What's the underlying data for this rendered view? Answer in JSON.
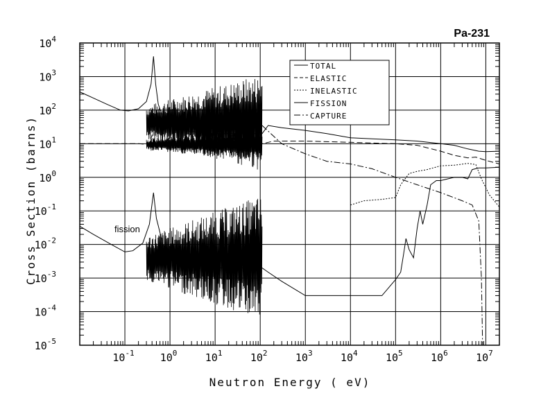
{
  "chart_data": {
    "type": "line",
    "title": "Pa-231",
    "xlabel": "Neutron Energy ( eV)",
    "ylabel": "Cross Section (barns)",
    "x_scale": "log",
    "y_scale": "log",
    "xlim": [
      0.01,
      20000000
    ],
    "ylim": [
      1e-05,
      10000
    ],
    "grid": true,
    "legend_position": "top-right",
    "x_ticks": [
      {
        "value": 0.1,
        "base": "10",
        "exp": "-1"
      },
      {
        "value": 1,
        "base": "10",
        "exp": "0"
      },
      {
        "value": 10,
        "base": "10",
        "exp": "1"
      },
      {
        "value": 100,
        "base": "10",
        "exp": "2"
      },
      {
        "value": 1000,
        "base": "10",
        "exp": "3"
      },
      {
        "value": 10000,
        "base": "10",
        "exp": "4"
      },
      {
        "value": 100000,
        "base": "10",
        "exp": "5"
      },
      {
        "value": 1000000,
        "base": "10",
        "exp": "6"
      },
      {
        "value": 10000000,
        "base": "10",
        "exp": "7"
      }
    ],
    "y_ticks": [
      {
        "value": 10000,
        "base": "10",
        "exp": "4"
      },
      {
        "value": 1000,
        "base": "10",
        "exp": "3"
      },
      {
        "value": 100,
        "base": "10",
        "exp": "2"
      },
      {
        "value": 10,
        "base": "10",
        "exp": "1"
      },
      {
        "value": 1,
        "base": "10",
        "exp": "0"
      },
      {
        "value": 0.1,
        "base": "10",
        "exp": "-1"
      },
      {
        "value": 0.01,
        "base": "10",
        "exp": "-2"
      },
      {
        "value": 0.001,
        "base": "10",
        "exp": "-3"
      },
      {
        "value": 0.0001,
        "base": "10",
        "exp": "-4"
      },
      {
        "value": 1e-05,
        "base": "10",
        "exp": "-5"
      }
    ],
    "annotations": [
      {
        "text": "fission",
        "x": 0.03,
        "y": 0.025
      }
    ],
    "resonance_region": {
      "x_range": [
        0.3,
        110
      ],
      "note": "dense resonance structure drawn as oscillating traces",
      "series": [
        {
          "name": "TOTAL",
          "upper_envelope": 1200,
          "lower_envelope": 1.5
        },
        {
          "name": "ELASTIC",
          "upper_envelope": 30,
          "lower_envelope": 3
        },
        {
          "name": "FISSION",
          "upper_envelope": 0.3,
          "lower_envelope": 5e-05
        }
      ]
    },
    "series": [
      {
        "name": "TOTAL",
        "dash": "solid",
        "points": [
          [
            0.01,
            350
          ],
          [
            0.02,
            230
          ],
          [
            0.04,
            150
          ],
          [
            0.08,
            100
          ],
          [
            0.12,
            95
          ],
          [
            0.2,
            110
          ],
          [
            0.3,
            180
          ],
          [
            0.38,
            600
          ],
          [
            0.43,
            4000
          ],
          [
            0.48,
            600
          ],
          [
            0.55,
            150
          ],
          [
            0.7,
            60
          ],
          [
            0.9,
            40
          ],
          [
            1.2,
            30
          ],
          [
            2,
            25
          ],
          [
            4,
            22
          ],
          [
            10,
            20
          ],
          [
            30,
            20
          ],
          [
            110,
            20
          ],
          [
            150,
            35
          ],
          [
            300,
            30
          ],
          [
            1000,
            25
          ],
          [
            3000,
            20
          ],
          [
            10000,
            15
          ],
          [
            30000,
            14
          ],
          [
            100000,
            13
          ],
          [
            300000,
            12
          ],
          [
            1000000,
            10
          ],
          [
            2000000,
            9
          ],
          [
            4000000,
            7
          ],
          [
            7000000,
            6
          ],
          [
            10000000,
            5.8
          ],
          [
            20000000,
            6
          ]
        ]
      },
      {
        "name": "ELASTIC",
        "dash": "dashed",
        "points": [
          [
            0.01,
            10
          ],
          [
            0.05,
            10
          ],
          [
            0.2,
            10
          ],
          [
            0.35,
            9.5
          ],
          [
            0.4,
            18
          ],
          [
            0.45,
            10
          ],
          [
            0.6,
            9
          ],
          [
            1,
            9
          ],
          [
            3,
            10
          ],
          [
            10,
            10
          ],
          [
            110,
            10
          ],
          [
            200,
            12
          ],
          [
            1000,
            12
          ],
          [
            10000,
            11
          ],
          [
            100000,
            10
          ],
          [
            300000,
            9
          ],
          [
            1000000,
            6
          ],
          [
            2000000,
            4.5
          ],
          [
            4000000,
            3.8
          ],
          [
            6000000,
            4
          ],
          [
            10000000,
            3.2
          ],
          [
            20000000,
            2.5
          ]
        ]
      },
      {
        "name": "INELASTIC",
        "dash": "dotted",
        "points": [
          [
            10000,
            0.15
          ],
          [
            20000,
            0.2
          ],
          [
            50000,
            0.22
          ],
          [
            100000,
            0.25
          ],
          [
            130000,
            0.6
          ],
          [
            200000,
            1.3
          ],
          [
            300000,
            1.5
          ],
          [
            500000,
            1.7
          ],
          [
            1000000,
            2.2
          ],
          [
            2000000,
            2.3
          ],
          [
            4000000,
            2.6
          ],
          [
            6000000,
            2.4
          ],
          [
            8000000,
            0.9
          ],
          [
            12000000,
            0.3
          ],
          [
            20000000,
            0.13
          ]
        ]
      },
      {
        "name": "FISSION",
        "dash": "solid",
        "points": [
          [
            0.01,
            0.035
          ],
          [
            0.02,
            0.02
          ],
          [
            0.05,
            0.01
          ],
          [
            0.1,
            0.006
          ],
          [
            0.15,
            0.0065
          ],
          [
            0.25,
            0.011
          ],
          [
            0.35,
            0.04
          ],
          [
            0.43,
            0.35
          ],
          [
            0.5,
            0.06
          ],
          [
            0.7,
            0.01
          ],
          [
            1,
            0.005
          ],
          [
            3,
            0.003
          ],
          [
            10,
            0.002
          ],
          [
            110,
            0.002
          ],
          [
            150,
            0.0015
          ],
          [
            300,
            0.0008
          ],
          [
            1000,
            0.0003
          ],
          [
            10000,
            0.0003
          ],
          [
            50000,
            0.0003
          ],
          [
            100000,
            0.0009
          ],
          [
            130000,
            0.0015
          ],
          [
            150000,
            0.005
          ],
          [
            170000,
            0.015
          ],
          [
            200000,
            0.007
          ],
          [
            250000,
            0.004
          ],
          [
            300000,
            0.03
          ],
          [
            350000,
            0.1
          ],
          [
            400000,
            0.04
          ],
          [
            500000,
            0.15
          ],
          [
            600000,
            0.6
          ],
          [
            800000,
            0.8
          ],
          [
            1000000,
            0.8
          ],
          [
            2000000,
            1
          ],
          [
            3000000,
            1
          ],
          [
            4000000,
            0.9
          ],
          [
            5000000,
            1.7
          ],
          [
            7000000,
            1.9
          ],
          [
            10000000,
            1.9
          ],
          [
            20000000,
            2
          ]
        ]
      },
      {
        "name": "CAPTURE",
        "dash": "dash-dot",
        "points": [
          [
            110,
            35
          ],
          [
            300,
            10
          ],
          [
            1000,
            5
          ],
          [
            3000,
            3
          ],
          [
            10000,
            2.5
          ],
          [
            30000,
            1.8
          ],
          [
            100000,
            1
          ],
          [
            300000,
            0.6
          ],
          [
            1000000,
            0.35
          ],
          [
            3000000,
            0.2
          ],
          [
            5000000,
            0.15
          ],
          [
            7000000,
            0.05
          ],
          [
            8000000,
            0.001
          ],
          [
            8500000,
            1e-05
          ]
        ]
      }
    ]
  }
}
